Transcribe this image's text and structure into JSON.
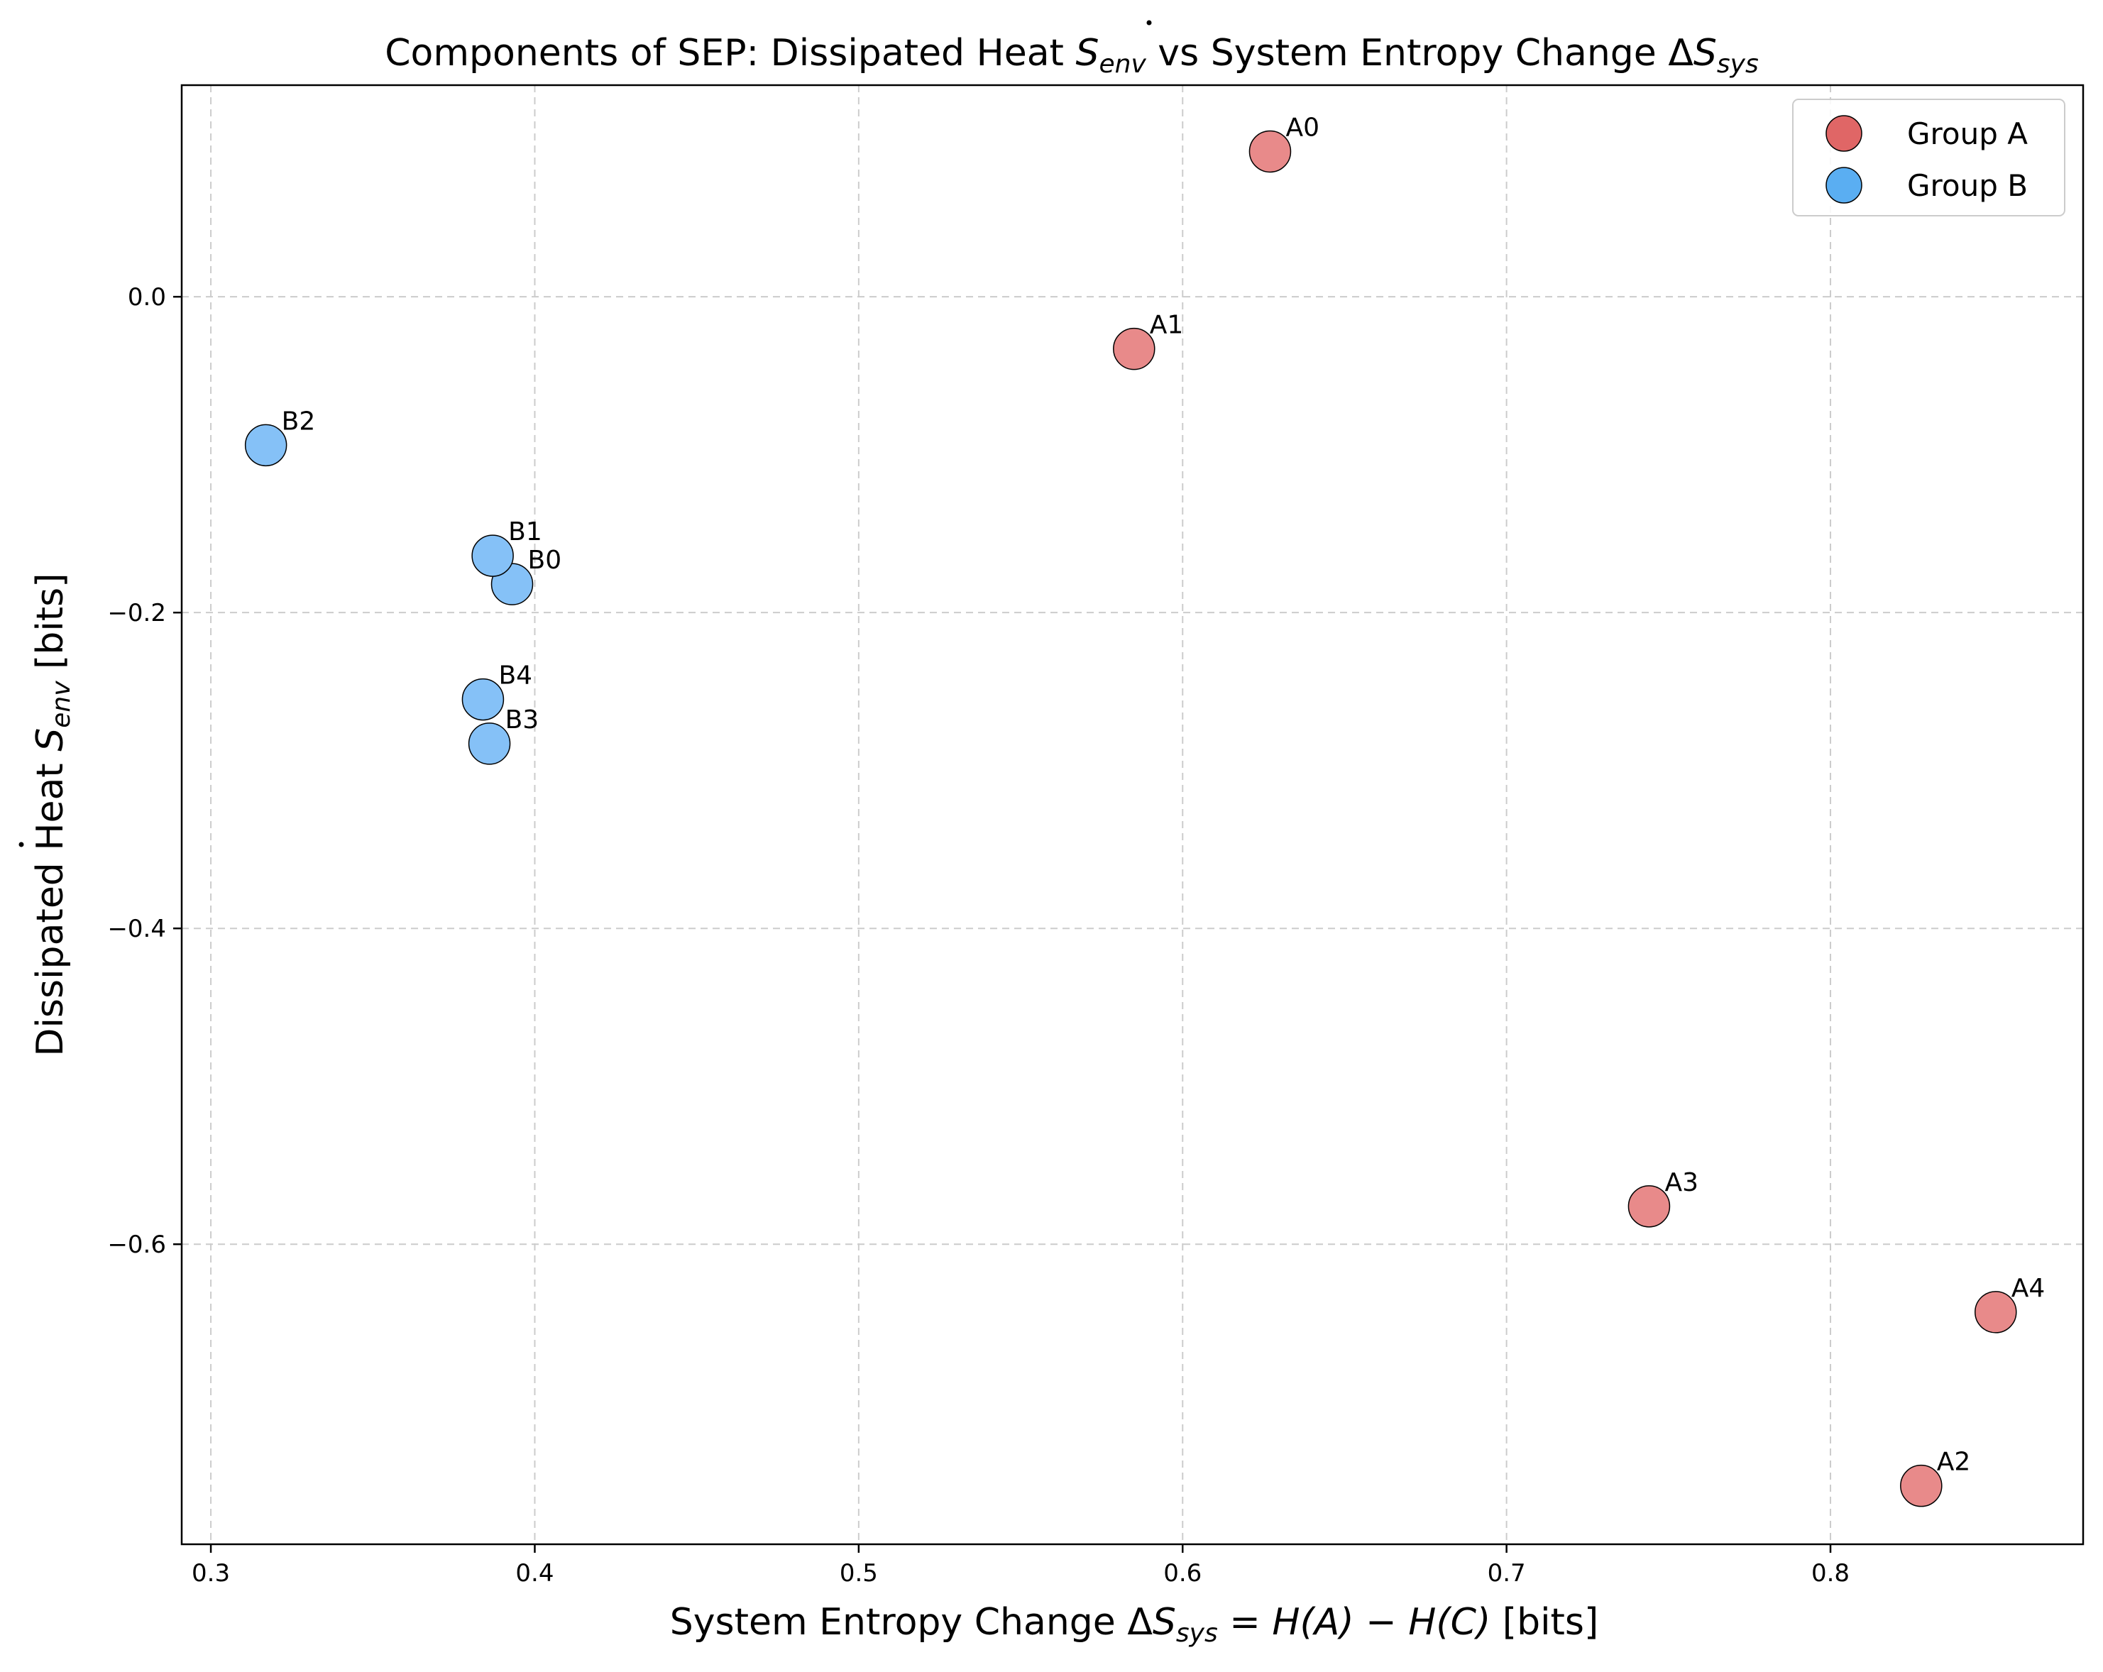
{
  "chart_data": {
    "type": "scatter",
    "title": {
      "prefix": "Components of SEP: Dissipated Heat ",
      "sym1": "S",
      "sub1": "env",
      "middle": " vs System Entropy Change Δ",
      "sym2": "S",
      "sub2": "sys"
    },
    "xlabel": {
      "prefix": "System Entropy Change Δ",
      "sym": "S",
      "sub": "sys",
      "formula": " = H(A) − H(C)",
      "suffix": " [bits]"
    },
    "ylabel": {
      "prefix": "Dissipated Heat ",
      "sym": "S",
      "sub": "env",
      "suffix": " [bits]"
    },
    "xlim": [
      0.291,
      0.878
    ],
    "ylim": [
      -0.79,
      0.134
    ],
    "xticks": [
      0.3,
      0.4,
      0.5,
      0.6,
      0.7,
      0.8
    ],
    "xtick_labels": [
      "0.3",
      "0.4",
      "0.5",
      "0.6",
      "0.7",
      "0.8"
    ],
    "yticks": [
      0.0,
      -0.2,
      -0.4,
      -0.6
    ],
    "ytick_labels": [
      "0.0",
      "−0.2",
      "−0.4",
      "−0.6"
    ],
    "grid": true,
    "legend_position": "top-right",
    "series": [
      {
        "name": "Group A",
        "color": "#e88a8a",
        "legend_color": "#e06666",
        "points": [
          {
            "label": "A0",
            "x": 0.627,
            "y": 0.092
          },
          {
            "label": "A1",
            "x": 0.585,
            "y": -0.033
          },
          {
            "label": "A2",
            "x": 0.828,
            "y": -0.753
          },
          {
            "label": "A3",
            "x": 0.744,
            "y": -0.576
          },
          {
            "label": "A4",
            "x": 0.851,
            "y": -0.643
          }
        ]
      },
      {
        "name": "Group B",
        "color": "#85c1f7",
        "legend_color": "#5aaef2",
        "points": [
          {
            "label": "B0",
            "x": 0.393,
            "y": -0.182
          },
          {
            "label": "B1",
            "x": 0.387,
            "y": -0.164
          },
          {
            "label": "B2",
            "x": 0.317,
            "y": -0.094
          },
          {
            "label": "B3",
            "x": 0.386,
            "y": -0.283
          },
          {
            "label": "B4",
            "x": 0.384,
            "y": -0.255
          }
        ]
      }
    ]
  }
}
